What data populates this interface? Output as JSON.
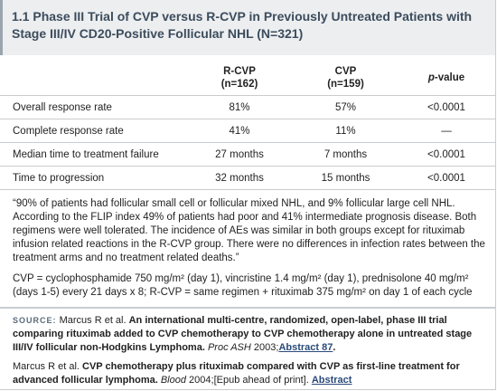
{
  "header": {
    "title_lines": [
      "1.1 Phase III Trial of CVP versus R-CVP in Previously Untreated Patients with",
      "Stage III/IV CD20-Positive Follicular NHL (N=321)"
    ]
  },
  "table": {
    "columns": [
      {
        "name": "R-CVP",
        "n": "(n=162)"
      },
      {
        "name": "CVP",
        "n": "(n=159)"
      }
    ],
    "p_header": [
      "p",
      "-value"
    ],
    "rows": [
      [
        "Overall response rate",
        "81%",
        "57%",
        "<0.0001"
      ],
      [
        "Complete response rate",
        "41%",
        "11%",
        "—"
      ],
      [
        "Median time to treatment failure",
        "27 months",
        "7 months",
        "<0.0001"
      ],
      [
        "Time to progression",
        "32 months",
        "15 months",
        "<0.0001"
      ]
    ]
  },
  "quote": "“90% of patients had follicular small cell or follicular mixed NHL, and 9% follicular large cell NHL. According to the FLIP index 49% of patients had poor and 41% intermediate prognosis disease. Both regimens were well tolerated. The incidence of AEs was similar in both groups except for rituximab infusion related reactions in the R-CVP group. There were no differences in infection rates between the treatment arms and no treatment related deaths.”",
  "abbreviations": "CVP = cyclophosphamide 750 mg/m² (day 1), vincristine 1.4 mg/m² (day 1), prednisolone 40 mg/m² (days 1-5) every 21 days x 8; R-CVP = same regimen + rituximab 375 mg/m² on day 1 of each cycle",
  "source": {
    "label": "SOURCE:",
    "authors": "Marcus R et al.",
    "title": "An international multi-centre, randomized, open-label, phase III trial comparing rituximab added to CVP chemotherapy to CVP chemotherapy alone in untreated stage III/IV follicular non-Hodgkins Lymphoma.",
    "journal": "Proc ASH",
    "year": "2003;",
    "link": "Abstract 87",
    "end": "."
  },
  "reference": {
    "authors": "Marcus R et al.",
    "title": "CVP chemotherapy plus rituximab compared with CVP as first-line treatment for advanced follicular lymphoma.",
    "journal": "Blood",
    "rest": "2004;[Epub ahead of print].",
    "link": "Abstract"
  }
}
